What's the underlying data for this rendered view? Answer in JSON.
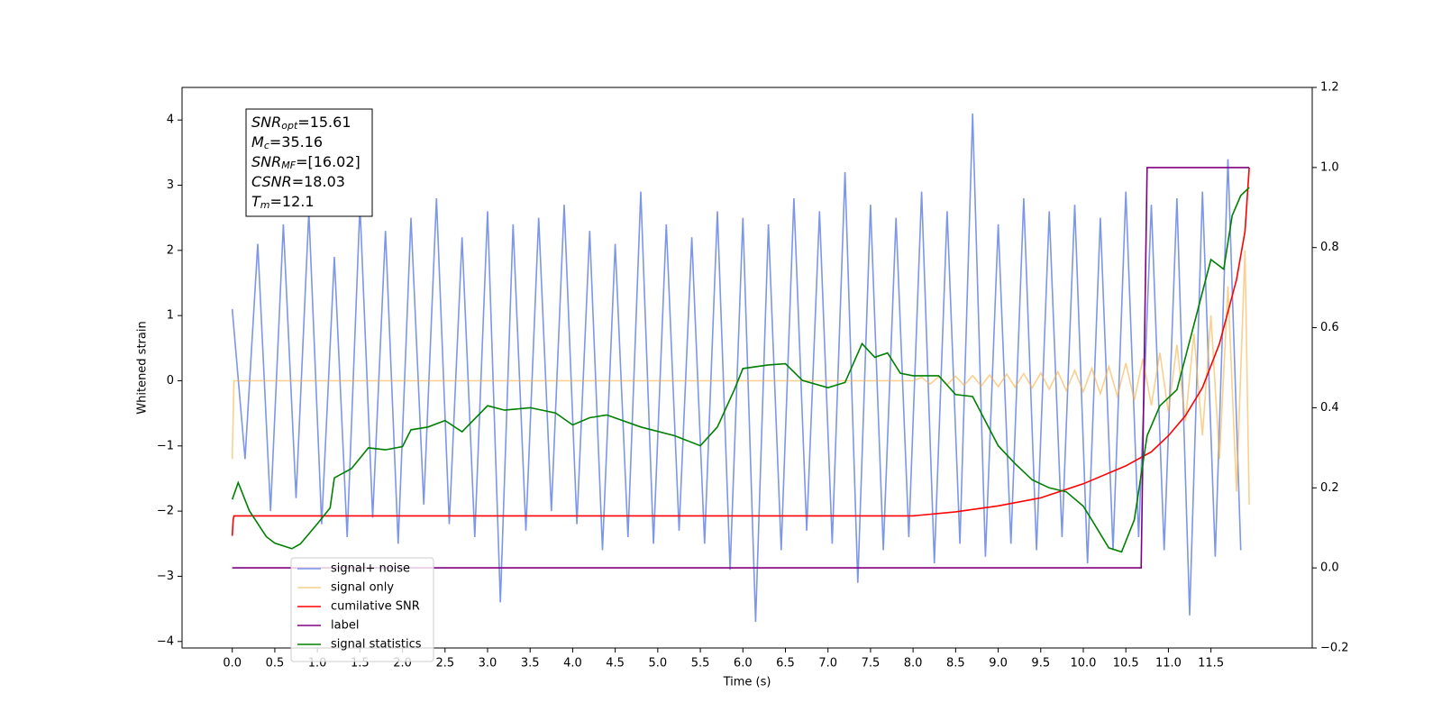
{
  "chart_data": {
    "type": "line",
    "xlabel": "Time (s)",
    "ylabel": "Whitened strain",
    "xlim": [
      -0.59,
      12.69
    ],
    "ylim": [
      -4.1,
      4.5
    ],
    "y2lim": [
      -0.2,
      1.2
    ],
    "xticks": [
      {
        "value": 0,
        "label": "0.0"
      },
      0.5,
      {
        "value": 1,
        "label": "1.0"
      },
      1.5,
      {
        "value": 2,
        "label": "2.0"
      },
      2.5,
      {
        "value": 3,
        "label": "3.0"
      },
      3.5,
      {
        "value": 4,
        "label": "4.0"
      },
      4.5,
      {
        "value": 5,
        "label": "5.0"
      },
      5.5,
      {
        "value": 6,
        "label": "6.0"
      },
      6.5,
      {
        "value": 7,
        "label": "7.0"
      },
      7.5,
      {
        "value": 8,
        "label": "8.0"
      },
      8.5,
      {
        "value": 9,
        "label": "9.0"
      },
      9.5,
      {
        "value": 10,
        "label": "10.0"
      },
      10.5,
      {
        "value": 11,
        "label": "11.0"
      },
      11.5
    ],
    "yticks": [
      {
        "value": -4,
        "label": "−4"
      },
      {
        "value": -3,
        "label": "−3"
      },
      {
        "value": -2,
        "label": "−2"
      },
      {
        "value": -1,
        "label": "−1"
      },
      0,
      1,
      2,
      3,
      4
    ],
    "y2ticks": [
      {
        "value": -0.2,
        "label": "−0.2"
      },
      {
        "value": 0,
        "label": "0.0"
      },
      0.2,
      0.4,
      0.6,
      0.8,
      {
        "value": 1,
        "label": "1.0"
      },
      1.2
    ],
    "legend": "lower left",
    "annotation": [
      {
        "main": "SNR",
        "sub": "opt",
        "rest": "=15.61"
      },
      {
        "main": "M",
        "sub": "c",
        "rest": "=35.16"
      },
      {
        "main": "SNR",
        "sub": "MF",
        "rest": "=[16.02]"
      },
      {
        "main": "CSNR",
        "rest": "=18.03"
      },
      {
        "main": "T",
        "sub": "m",
        "rest": "=12.1"
      }
    ],
    "series": [
      {
        "name": "signal+ noise",
        "color": "#7590e8",
        "x": [
          0,
          0.15,
          0.3,
          0.45,
          0.6,
          0.75,
          0.9,
          1.05,
          1.2,
          1.35,
          1.5,
          1.65,
          1.8,
          1.95,
          2.1,
          2.25,
          2.4,
          2.55,
          2.7,
          2.85,
          3,
          3.15,
          3.3,
          3.45,
          3.6,
          3.75,
          3.9,
          4.05,
          4.2,
          4.35,
          4.5,
          4.65,
          4.8,
          4.95,
          5.1,
          5.25,
          5.4,
          5.55,
          5.7,
          5.85,
          6,
          6.15,
          6.3,
          6.45,
          6.6,
          6.75,
          6.9,
          7.05,
          7.2,
          7.35,
          7.5,
          7.65,
          7.8,
          7.95,
          8.1,
          8.25,
          8.4,
          8.55,
          8.7,
          8.85,
          9,
          9.15,
          9.3,
          9.45,
          9.6,
          9.75,
          9.9,
          10.05,
          10.2,
          10.35,
          10.5,
          10.65,
          10.8,
          10.95,
          11.1,
          11.25,
          11.4,
          11.55,
          11.7,
          11.85
        ],
        "values": [
          1.1,
          -1.2,
          2.1,
          -2.0,
          2.4,
          -1.8,
          2.6,
          -2.2,
          1.9,
          -2.4,
          2.7,
          -2.1,
          2.3,
          -2.5,
          2.5,
          -1.9,
          2.8,
          -2.2,
          2.2,
          -2.4,
          2.6,
          -3.4,
          2.4,
          -2.3,
          2.5,
          -2.0,
          2.7,
          -2.2,
          2.3,
          -2.6,
          2.1,
          -2.4,
          2.9,
          -2.5,
          2.4,
          -2.3,
          2.2,
          -2.5,
          2.6,
          -2.9,
          2.5,
          -3.7,
          2.4,
          -2.6,
          2.8,
          -2.3,
          2.6,
          -2.5,
          3.2,
          -3.1,
          2.7,
          -2.6,
          2.5,
          -2.4,
          2.9,
          -2.8,
          2.6,
          -2.5,
          4.1,
          -2.7,
          2.4,
          -2.5,
          2.8,
          -2.6,
          2.6,
          -2.4,
          2.7,
          -2.8,
          2.5,
          -2.6,
          2.9,
          -2.4,
          2.7,
          -2.6,
          2.8,
          -3.6,
          2.9,
          -2.7,
          3.4,
          -2.6
        ]
      },
      {
        "name": "signal only",
        "color": "#f5b041",
        "x": [
          0,
          0.02,
          8,
          8.1,
          8.2,
          8.3,
          8.4,
          8.5,
          8.6,
          8.7,
          8.8,
          8.9,
          9,
          9.1,
          9.2,
          9.3,
          9.4,
          9.5,
          9.6,
          9.7,
          9.8,
          9.9,
          10,
          10.1,
          10.2,
          10.3,
          10.4,
          10.5,
          10.6,
          10.7,
          10.8,
          10.9,
          11,
          11.1,
          11.2,
          11.3,
          11.4,
          11.5,
          11.6,
          11.7,
          11.8,
          11.9,
          11.95
        ],
        "values": [
          -1.2,
          0,
          0,
          0.05,
          -0.05,
          0.06,
          -0.06,
          0.07,
          -0.07,
          0.08,
          -0.08,
          0.09,
          -0.09,
          0.1,
          -0.1,
          0.11,
          -0.11,
          0.12,
          -0.13,
          0.14,
          -0.15,
          0.16,
          -0.17,
          0.19,
          -0.2,
          0.22,
          -0.24,
          0.27,
          -0.3,
          0.34,
          -0.38,
          0.43,
          -0.48,
          0.55,
          -0.62,
          0.72,
          -0.84,
          1.0,
          -1.2,
          1.45,
          -1.7,
          2.0,
          -1.9
        ]
      },
      {
        "name": "cumilative SNR",
        "color": "#ff0000",
        "axis": "y2",
        "x": [
          0,
          0.01,
          0.02,
          8,
          8.5,
          9,
          9.5,
          10,
          10.5,
          10.8,
          11,
          11.2,
          11.4,
          11.6,
          11.8,
          11.9,
          11.95
        ],
        "values": [
          0.08,
          0.12,
          0.13,
          0.13,
          0.14,
          0.155,
          0.175,
          0.21,
          0.255,
          0.29,
          0.33,
          0.38,
          0.45,
          0.56,
          0.72,
          0.84,
          1.0
        ]
      },
      {
        "name": "label",
        "color": "#800080",
        "axis": "y2",
        "x": [
          0,
          10.68,
          10.75,
          11.95
        ],
        "values": [
          0,
          0,
          1,
          1
        ]
      },
      {
        "name": "signal statistics",
        "color": "#008000",
        "axis": "y2",
        "x": [
          0,
          0.07,
          0.2,
          0.4,
          0.5,
          0.7,
          0.8,
          1,
          1.15,
          1.2,
          1.4,
          1.6,
          1.8,
          2,
          2.1,
          2.3,
          2.5,
          2.7,
          3,
          3.2,
          3.5,
          3.8,
          4,
          4.2,
          4.4,
          4.8,
          5.2,
          5.5,
          5.7,
          5.9,
          6,
          6.3,
          6.5,
          6.7,
          7,
          7.2,
          7.4,
          7.55,
          7.7,
          7.85,
          8,
          8.3,
          8.5,
          8.7,
          9,
          9.2,
          9.4,
          9.6,
          9.8,
          10,
          10.1,
          10.3,
          10.45,
          10.6,
          10.75,
          10.9,
          11.1,
          11.3,
          11.5,
          11.65,
          11.75,
          11.85,
          11.95
        ],
        "values": [
          0.171,
          0.213,
          0.143,
          0.078,
          0.062,
          0.048,
          0.06,
          0.11,
          0.15,
          0.225,
          0.248,
          0.3,
          0.295,
          0.303,
          0.345,
          0.352,
          0.368,
          0.34,
          0.405,
          0.394,
          0.4,
          0.387,
          0.357,
          0.375,
          0.382,
          0.352,
          0.33,
          0.305,
          0.352,
          0.445,
          0.498,
          0.507,
          0.51,
          0.468,
          0.45,
          0.463,
          0.56,
          0.526,
          0.537,
          0.486,
          0.48,
          0.48,
          0.433,
          0.428,
          0.305,
          0.26,
          0.22,
          0.2,
          0.19,
          0.154,
          0.12,
          0.05,
          0.04,
          0.12,
          0.33,
          0.405,
          0.445,
          0.607,
          0.77,
          0.746,
          0.88,
          0.93,
          0.95
        ]
      }
    ]
  }
}
